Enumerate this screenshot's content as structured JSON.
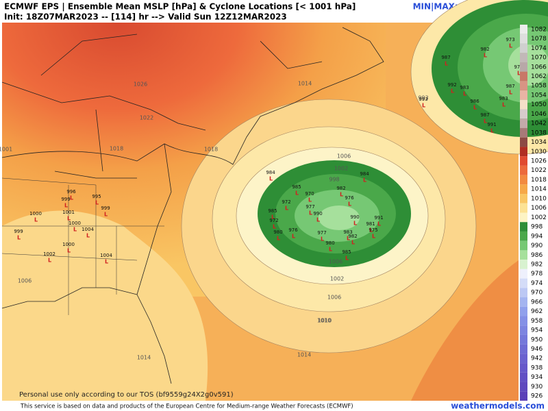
{
  "header": {
    "title": "ECMWF EPS | Ensemble Mean MSLP [hPa] & Cyclone Locations [< 1001 hPa]",
    "init": "Init: 18Z07MAR2023 -- [114] hr --> Valid Sun 12Z12MAR2023",
    "minmax": "MIN|MAX: 986.6 |1031.8 hPa"
  },
  "colorbar": {
    "labels": [
      "1082",
      "1078",
      "1074",
      "1070",
      "1066",
      "1062",
      "1058",
      "1054",
      "1050",
      "1046",
      "1042",
      "1038",
      "1034",
      "1030",
      "1026",
      "1022",
      "1018",
      "1014",
      "1010",
      "1006",
      "1002",
      "998",
      "994",
      "990",
      "986",
      "982",
      "978",
      "974",
      "970",
      "966",
      "962",
      "958",
      "954",
      "950",
      "946",
      "942",
      "938",
      "934",
      "930",
      "926"
    ],
    "colors": [
      "#ececec",
      "#dedede",
      "#d0d0d0",
      "#c2b8b8",
      "#b8a8a8",
      "#c87868",
      "#d89484",
      "#e8b4a4",
      "#f4e0c8",
      "#d8cccc",
      "#c4aaaa",
      "#a87a78",
      "#8c4a44",
      "#b02e22",
      "#e04a30",
      "#ec6a3c",
      "#f28a40",
      "#f6a848",
      "#f9c664",
      "#fce294",
      "#fdf4c4",
      "#2e8e36",
      "#4aa84a",
      "#76c874",
      "#a6e09c",
      "#d8f2d0",
      "#eef0fc",
      "#d4dcf8",
      "#bcc8f4",
      "#a4b4f0",
      "#90a0ec",
      "#8490e6",
      "#7c84e0",
      "#7478da",
      "#6e6cd4",
      "#6a62cf",
      "#6658ca",
      "#6250c4",
      "#5e48be",
      "#5a40b8"
    ]
  },
  "contours": [
    "1026",
    "1022",
    "1018",
    "1018",
    "1014",
    "1010",
    "1006",
    "1002",
    "998",
    "1006",
    "1010",
    "1014",
    "1014",
    "1006",
    "1002",
    "993",
    "1001",
    "1006"
  ],
  "cyclones": {
    "marker": "L",
    "labels": [
      "984",
      "985",
      "970",
      "984",
      "982",
      "976",
      "977",
      "972",
      "985",
      "990",
      "991",
      "981",
      "975",
      "983",
      "982",
      "980",
      "985",
      "972",
      "980",
      "976",
      "990",
      "977",
      "1001",
      "996",
      "999",
      "995",
      "999",
      "1000",
      "999",
      "1004",
      "1002",
      "1000",
      "1004",
      "987",
      "982",
      "973",
      "976",
      "992",
      "983",
      "986",
      "987",
      "991",
      "983",
      "987",
      "993",
      "1000"
    ]
  },
  "footer": {
    "tos": "Personal use only according to our TOS (bf9559g24X2g0v591)",
    "credit": "This service is based on data and products of the European Centre for Medium-range Weather Forecasts (ECMWF)",
    "site": "weathermodels.com"
  }
}
